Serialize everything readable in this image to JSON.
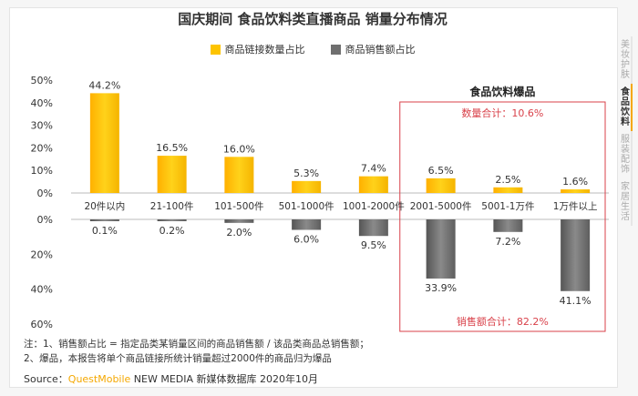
{
  "header": {
    "title": "国庆期间 食品饮料类直播商品 销量分布情况"
  },
  "legend": [
    {
      "label": "商品链接数量占比",
      "color": "#fdc400"
    },
    {
      "label": "商品销售额占比",
      "color": "#6f6f6f"
    }
  ],
  "sidebar": {
    "items": [
      {
        "label": "美妆护肤",
        "active": false
      },
      {
        "label": "食品饮料",
        "active": true
      },
      {
        "label": "服装配饰",
        "active": false
      },
      {
        "label": "家居生活",
        "active": false
      }
    ]
  },
  "highlight": {
    "heading": "食品饮料爆品",
    "count_total": "数量合计：10.6%",
    "sales_total": "销售额合计：82.2%"
  },
  "chart_data": {
    "type": "bar",
    "categories": [
      "20件以内",
      "21-100件",
      "101-500件",
      "501-1000件",
      "1001-2000件",
      "2001-5000件",
      "5001-1万件",
      "1万件以上"
    ],
    "series": [
      {
        "name": "商品链接数量占比",
        "values": [
          44.2,
          16.5,
          16.0,
          5.3,
          7.4,
          6.5,
          2.5,
          1.6
        ],
        "labels": [
          "44.2%",
          "16.5%",
          "16.0%",
          "5.3%",
          "7.4%",
          "6.5%",
          "2.5%",
          "1.6%"
        ]
      },
      {
        "name": "商品销售额占比",
        "values": [
          0.1,
          0.2,
          2.0,
          6.0,
          9.5,
          33.9,
          7.2,
          41.1
        ],
        "labels": [
          "0.1%",
          "0.2%",
          "2.0%",
          "6.0%",
          "9.5%",
          "33.9%",
          "7.2%",
          "41.1%"
        ]
      }
    ],
    "top_axis": {
      "ylim": [
        0,
        50
      ],
      "ticks": [
        "0%",
        "10%",
        "20%",
        "30%",
        "40%",
        "50%"
      ]
    },
    "bottom_axis": {
      "ylim": [
        0,
        60
      ],
      "ticks": [
        "0%",
        "20%",
        "40%",
        "60%"
      ]
    },
    "colors": {
      "count": "#fdc400",
      "sales": "#6f6f6f",
      "highlight_border": "#d9414a",
      "highlight_text": "#d9414a"
    }
  },
  "notes": {
    "line1": "注：1、销售额占比 = 指定品类某销量区间的商品销售额 / 该品类商品总销售额；",
    "line2": "2、爆品，本报告将单个商品链接所统计销量超过2000件的商品归为爆品"
  },
  "source": {
    "prefix": "Source：",
    "brand": "QuestMobile",
    "suffix": " NEW MEDIA 新媒体数据库 2020年10月"
  }
}
